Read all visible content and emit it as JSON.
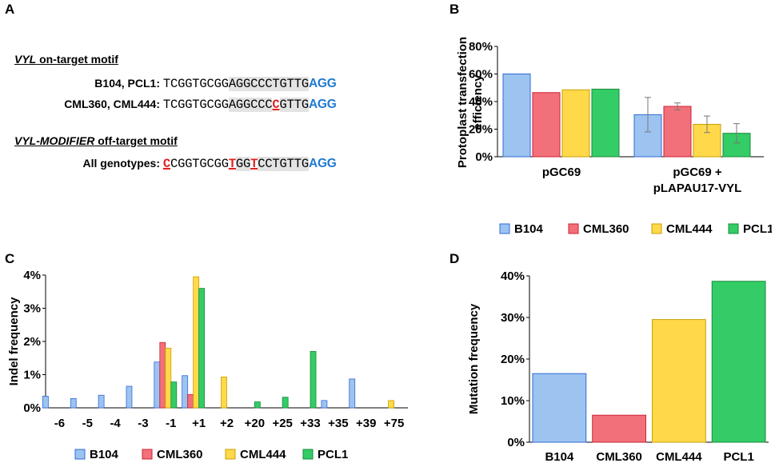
{
  "panels": {
    "a": "A",
    "b": "B",
    "c": "C",
    "d": "D"
  },
  "panel_a": {
    "title1_italic": "VYL",
    "title1_rest": " on-target motif",
    "rows": [
      {
        "label": "B104, PCL1:",
        "segments": [
          {
            "t": "TCGGTGCGG",
            "s": "n"
          },
          {
            "t": "AGGCCCTGTTG",
            "s": "hl"
          },
          {
            "t": "AGG",
            "s": "pam"
          }
        ]
      },
      {
        "label": "CML360, CML444:",
        "segments": [
          {
            "t": "TCGGTGCGG",
            "s": "n"
          },
          {
            "t": "AGGCCC",
            "s": "hl"
          },
          {
            "t": "C",
            "s": "mm"
          },
          {
            "t": "GTTG",
            "s": "hl"
          },
          {
            "t": "AGG",
            "s": "pam"
          }
        ]
      }
    ],
    "title2_italic": "VYL-MODIFIER",
    "title2_rest": " off-target motif",
    "row3": {
      "label": "All genotypes:",
      "segments": [
        {
          "t": "C",
          "s": "mm"
        },
        {
          "t": "CGGTGCGG",
          "s": "n"
        },
        {
          "t": "T",
          "s": "mm"
        },
        {
          "t": "GG",
          "s": "hl"
        },
        {
          "t": "T",
          "s": "mm"
        },
        {
          "t": "CCTGTTG",
          "s": "hl"
        },
        {
          "t": "AGG",
          "s": "pam"
        }
      ]
    }
  },
  "colors": {
    "B104": "#9dc3f0",
    "CML360": "#f2707a",
    "CML444": "#ffd94a",
    "PCL1": "#33cc66",
    "B104_stroke": "#2e6bd6",
    "CML360_stroke": "#cc2233",
    "CML444_stroke": "#c9a000",
    "PCL1_stroke": "#1a8a3a"
  },
  "legend": [
    "B104",
    "CML360",
    "CML444",
    "PCL1"
  ],
  "chart_data": [
    {
      "id": "B",
      "type": "bar",
      "ylabel": "Protoplast transfection efficiency",
      "ylabel_lines": [
        "Protoplast transfection",
        "efficiency"
      ],
      "ylim": [
        0,
        80
      ],
      "yticks": [
        "0%",
        "20%",
        "40%",
        "60%",
        "80%"
      ],
      "categories": [
        "pGC69",
        "pGC69 + pLAPAU17-VYL"
      ],
      "category_lines": [
        [
          "pGC69"
        ],
        [
          "pGC69 +",
          "pLAPAU17-VYL"
        ]
      ],
      "series": [
        {
          "name": "B104",
          "values": [
            60,
            30.5
          ],
          "errors": [
            0,
            12.5
          ]
        },
        {
          "name": "CML360",
          "values": [
            46.5,
            36.5
          ],
          "errors": [
            0,
            2.5
          ]
        },
        {
          "name": "CML444",
          "values": [
            48.5,
            23.5
          ],
          "errors": [
            0,
            6
          ]
        },
        {
          "name": "PCL1",
          "values": [
            49,
            17
          ],
          "errors": [
            0,
            7
          ]
        }
      ]
    },
    {
      "id": "C",
      "type": "bar",
      "ylabel": "Indel frequency",
      "ylim": [
        0,
        4
      ],
      "yticks": [
        "0%",
        "1%",
        "2%",
        "3%",
        "4%"
      ],
      "categories": [
        "-6",
        "-5",
        "-4",
        "-3",
        "-1",
        "+1",
        "+2",
        "+20",
        "+25",
        "+33",
        "+35",
        "+39",
        "+75"
      ],
      "series": [
        {
          "name": "B104",
          "values": [
            0.35,
            0.28,
            0.38,
            0.65,
            1.38,
            0.97,
            0,
            0,
            0,
            0,
            0.22,
            0.87,
            0
          ]
        },
        {
          "name": "CML360",
          "values": [
            0,
            0,
            0,
            0,
            1.97,
            0.4,
            0,
            0,
            0,
            0,
            0,
            0,
            0
          ]
        },
        {
          "name": "CML444",
          "values": [
            0,
            0,
            0,
            0,
            1.8,
            3.95,
            0.93,
            0,
            0,
            0,
            0,
            0,
            0.22
          ]
        },
        {
          "name": "PCL1",
          "values": [
            0,
            0,
            0,
            0,
            0.78,
            3.6,
            0,
            0.18,
            0.32,
            1.7,
            0,
            0,
            0
          ]
        }
      ]
    },
    {
      "id": "D",
      "type": "bar",
      "ylabel": "Mutation frequency",
      "ylim": [
        0,
        40
      ],
      "yticks": [
        "0%",
        "10%",
        "20%",
        "30%",
        "40%"
      ],
      "categories": [
        "B104",
        "CML360",
        "CML444",
        "PCL1"
      ],
      "values": [
        16.5,
        6.5,
        29.5,
        38.7
      ]
    }
  ]
}
